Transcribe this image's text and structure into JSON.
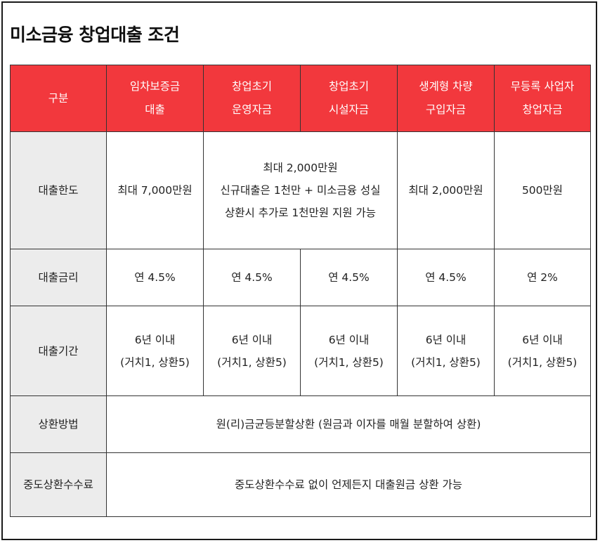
{
  "title": "미소금융 창업대출 조건",
  "header": {
    "category": "구분",
    "columns": [
      {
        "line1": "임차보증금",
        "line2": "대출"
      },
      {
        "line1": "창업초기",
        "line2": "운영자금"
      },
      {
        "line1": "창업초기",
        "line2": "시설자금"
      },
      {
        "line1": "생계형 차량",
        "line2": "구입자금"
      },
      {
        "line1": "무등록 사업자",
        "line2": "창업자금"
      }
    ]
  },
  "rows": {
    "limit": {
      "label": "대출한도",
      "c1": "최대 7,000만원",
      "c23": [
        "최대 2,000만원",
        "신규대출은 1천만 + 미소금융 성실",
        "상환시 추가로 1천만원 지원 가능"
      ],
      "c4": "최대 2,000만원",
      "c5": "500만원"
    },
    "rate": {
      "label": "대출금리",
      "values": [
        "연 4.5%",
        "연 4.5%",
        "연 4.5%",
        "연 4.5%",
        "연 2%"
      ]
    },
    "period": {
      "label": "대출기간",
      "values": [
        {
          "line1": "6년 이내",
          "line2": "(거치1, 상환5)"
        },
        {
          "line1": "6년 이내",
          "line2": "(거치1, 상환5)"
        },
        {
          "line1": "6년 이내",
          "line2": "(거치1, 상환5)"
        },
        {
          "line1": "6년 이내",
          "line2": "(거치1, 상환5)"
        },
        {
          "line1": "6년 이내",
          "line2": "(거치1, 상환5)"
        }
      ]
    },
    "method": {
      "label": "상환방법",
      "value": "원(리)금균등분할상환 (원금과 이자를 매월 분할하여 상환)"
    },
    "fee": {
      "label": "중도상환수수료",
      "value": "중도상환수수료 없이 언제든지 대출원금 상환 가능"
    }
  }
}
